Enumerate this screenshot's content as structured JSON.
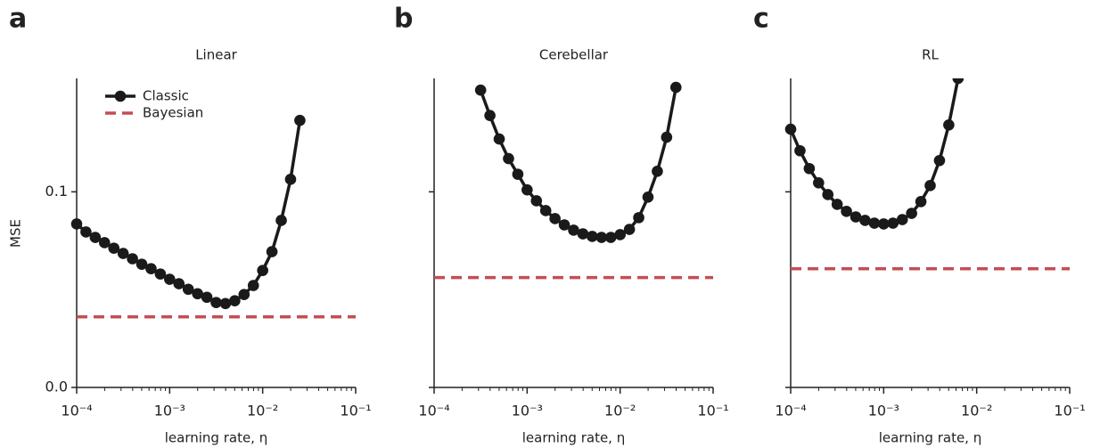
{
  "chart_data": [
    {
      "type": "line",
      "panel_label": "a",
      "title": "Linear",
      "xlabel": "learning rate, η",
      "ylabel": "MSE",
      "xscale": "log",
      "xlim": [
        0.0001,
        0.1
      ],
      "xticks": [
        {
          "value": 0.0001,
          "label": "10⁻⁴"
        },
        {
          "value": 0.001,
          "label": "10⁻³"
        },
        {
          "value": 0.01,
          "label": "10⁻²"
        },
        {
          "value": 0.1,
          "label": "10⁻¹"
        }
      ],
      "ylim": [
        0,
        0.158
      ],
      "yticks": [
        {
          "value": 0,
          "label": "0.0"
        },
        {
          "value": 0.1,
          "label": "0.1"
        }
      ],
      "legend": "upper left",
      "x": [
        0.0001,
        0.0001259,
        0.0001585,
        0.0001995,
        0.0002512,
        0.0003162,
        0.0003981,
        0.0005012,
        0.000631,
        0.0007943,
        0.001,
        0.001259,
        0.001585,
        0.001995,
        0.002512,
        0.003162,
        0.003981,
        0.005012,
        0.00631,
        0.007943,
        0.01,
        0.01259,
        0.01585,
        0.01995,
        0.02512
      ],
      "series": [
        {
          "name": "Classic",
          "color": "#1a1a1a",
          "values": [
            0.0836,
            0.0795,
            0.0767,
            0.074,
            0.0712,
            0.0685,
            0.0658,
            0.063,
            0.0607,
            0.058,
            0.0553,
            0.053,
            0.0502,
            0.0479,
            0.0461,
            0.0434,
            0.0429,
            0.0443,
            0.0475,
            0.0521,
            0.0598,
            0.0694,
            0.0854,
            0.1064,
            0.1365
          ]
        }
      ],
      "hlines": [
        {
          "name": "Bayesian",
          "color": "#c44e52",
          "value": 0.0361
        }
      ]
    },
    {
      "type": "line",
      "panel_label": "b",
      "title": "Cerebellar",
      "xlabel": "learning rate, η",
      "xscale": "log",
      "xlim": [
        0.0001,
        0.1
      ],
      "xticks": [
        {
          "value": 0.0001,
          "label": "10⁻⁴"
        },
        {
          "value": 0.001,
          "label": "10⁻³"
        },
        {
          "value": 0.01,
          "label": "10⁻²"
        },
        {
          "value": 0.1,
          "label": "10⁻¹"
        }
      ],
      "ylim": [
        0,
        0.158
      ],
      "yticks": [
        0,
        0.1
      ],
      "x": [
        0.0003162,
        0.0003981,
        0.0005012,
        0.000631,
        0.0007943,
        0.001,
        0.001259,
        0.001585,
        0.001995,
        0.002512,
        0.003162,
        0.003981,
        0.005012,
        0.00631,
        0.007943,
        0.01,
        0.01259,
        0.01585,
        0.01995,
        0.02512,
        0.03162,
        0.03981
      ],
      "series": [
        {
          "color": "#1a1a1a",
          "values": [
            0.152,
            0.139,
            0.127,
            0.117,
            0.109,
            0.101,
            0.0954,
            0.0904,
            0.0863,
            0.0831,
            0.0804,
            0.0785,
            0.0772,
            0.0767,
            0.0767,
            0.0781,
            0.0808,
            0.0868,
            0.0973,
            0.1105,
            0.1279,
            0.1534
          ]
        }
      ],
      "hlines": [
        {
          "color": "#c44e52",
          "value": 0.0562
        }
      ]
    },
    {
      "type": "line",
      "panel_label": "c",
      "title": "RL",
      "xlabel": "learning rate, η",
      "xscale": "log",
      "xlim": [
        0.0001,
        0.1
      ],
      "xticks": [
        {
          "value": 0.0001,
          "label": "10⁻⁴"
        },
        {
          "value": 0.001,
          "label": "10⁻³"
        },
        {
          "value": 0.01,
          "label": "10⁻²"
        },
        {
          "value": 0.1,
          "label": "10⁻¹"
        }
      ],
      "ylim": [
        0,
        0.158
      ],
      "yticks": [
        0,
        0.1
      ],
      "x": [
        0.0001,
        0.0001259,
        0.0001585,
        0.0001995,
        0.0002512,
        0.0003162,
        0.0003981,
        0.0005012,
        0.000631,
        0.0007943,
        0.001,
        0.001259,
        0.001585,
        0.001995,
        0.002512,
        0.003162,
        0.003981,
        0.005012,
        0.00631
      ],
      "series": [
        {
          "color": "#1a1a1a",
          "values": [
            0.132,
            0.121,
            0.1119,
            0.1046,
            0.0986,
            0.0936,
            0.09,
            0.0872,
            0.0854,
            0.084,
            0.0836,
            0.084,
            0.0858,
            0.089,
            0.095,
            0.1032,
            0.116,
            0.1342,
            0.158
          ]
        }
      ],
      "hlines": [
        {
          "color": "#c44e52",
          "value": 0.0607
        }
      ]
    }
  ]
}
